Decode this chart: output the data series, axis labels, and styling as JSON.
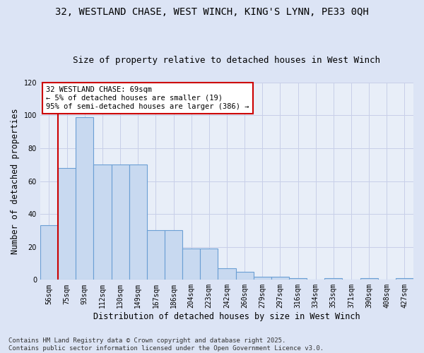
{
  "title_line1": "32, WESTLAND CHASE, WEST WINCH, KING'S LYNN, PE33 0QH",
  "title_line2": "Size of property relative to detached houses in West Winch",
  "xlabel": "Distribution of detached houses by size in West Winch",
  "ylabel": "Number of detached properties",
  "categories": [
    "56sqm",
    "75sqm",
    "93sqm",
    "112sqm",
    "130sqm",
    "149sqm",
    "167sqm",
    "186sqm",
    "204sqm",
    "223sqm",
    "242sqm",
    "260sqm",
    "279sqm",
    "297sqm",
    "316sqm",
    "334sqm",
    "353sqm",
    "371sqm",
    "390sqm",
    "408sqm",
    "427sqm"
  ],
  "values": [
    33,
    68,
    99,
    70,
    70,
    70,
    30,
    30,
    19,
    19,
    7,
    5,
    2,
    2,
    1,
    0,
    1,
    0,
    1,
    0,
    1
  ],
  "bar_color": "#c8d9f0",
  "bar_edge_color": "#6b9fd4",
  "vline_x": -0.5,
  "vline_color": "#cc0000",
  "annotation_title": "32 WESTLAND CHASE: 69sqm",
  "annotation_line1": "← 5% of detached houses are smaller (19)",
  "annotation_line2": "95% of semi-detached houses are larger (386) →",
  "annotation_box_color": "#ffffff",
  "annotation_box_edge_color": "#cc0000",
  "ylim": [
    0,
    120
  ],
  "yticks": [
    0,
    20,
    40,
    60,
    80,
    100,
    120
  ],
  "grid_color": "#c8cfe8",
  "bg_color": "#e8eef8",
  "fig_bg_color": "#dce4f5",
  "footer_line1": "Contains HM Land Registry data © Crown copyright and database right 2025.",
  "footer_line2": "Contains public sector information licensed under the Open Government Licence v3.0.",
  "title_fontsize": 10,
  "subtitle_fontsize": 9,
  "axis_label_fontsize": 8.5,
  "tick_fontsize": 7,
  "annotation_fontsize": 7.5,
  "footer_fontsize": 6.5
}
